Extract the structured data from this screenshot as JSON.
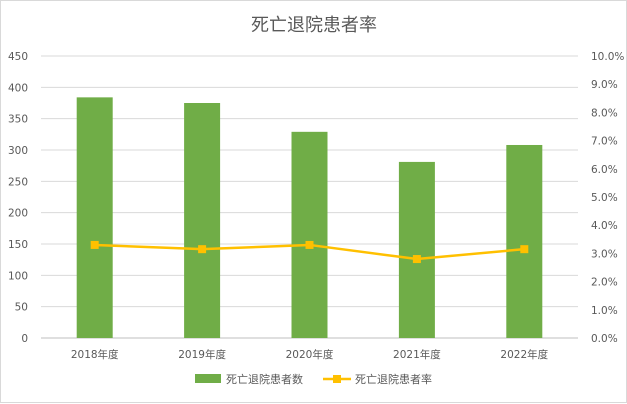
{
  "chart_data": {
    "type": "bar",
    "title": "死亡退院患者率",
    "categories": [
      "2018年度",
      "2019年度",
      "2020年度",
      "2021年度",
      "2022年度"
    ],
    "series": [
      {
        "name": "死亡退院患者数",
        "type": "bar",
        "axis": "left",
        "color": "#70ad47",
        "values": [
          384,
          375,
          329,
          281,
          308
        ]
      },
      {
        "name": "死亡退院患者率",
        "type": "line",
        "axis": "right",
        "color": "#ffc000",
        "values": [
          3.3,
          3.15,
          3.3,
          2.8,
          3.15
        ]
      }
    ],
    "y_left": {
      "min": 0,
      "max": 450,
      "step": 50,
      "ticks": [
        "0",
        "50",
        "100",
        "150",
        "200",
        "250",
        "300",
        "350",
        "400",
        "450"
      ]
    },
    "y_right": {
      "min": 0,
      "max": 10,
      "step": 1,
      "ticks": [
        "0.0%",
        "1.0%",
        "2.0%",
        "3.0%",
        "4.0%",
        "5.0%",
        "6.0%",
        "7.0%",
        "8.0%",
        "9.0%",
        "10.0%"
      ]
    },
    "grid": true,
    "legend_position": "bottom"
  }
}
